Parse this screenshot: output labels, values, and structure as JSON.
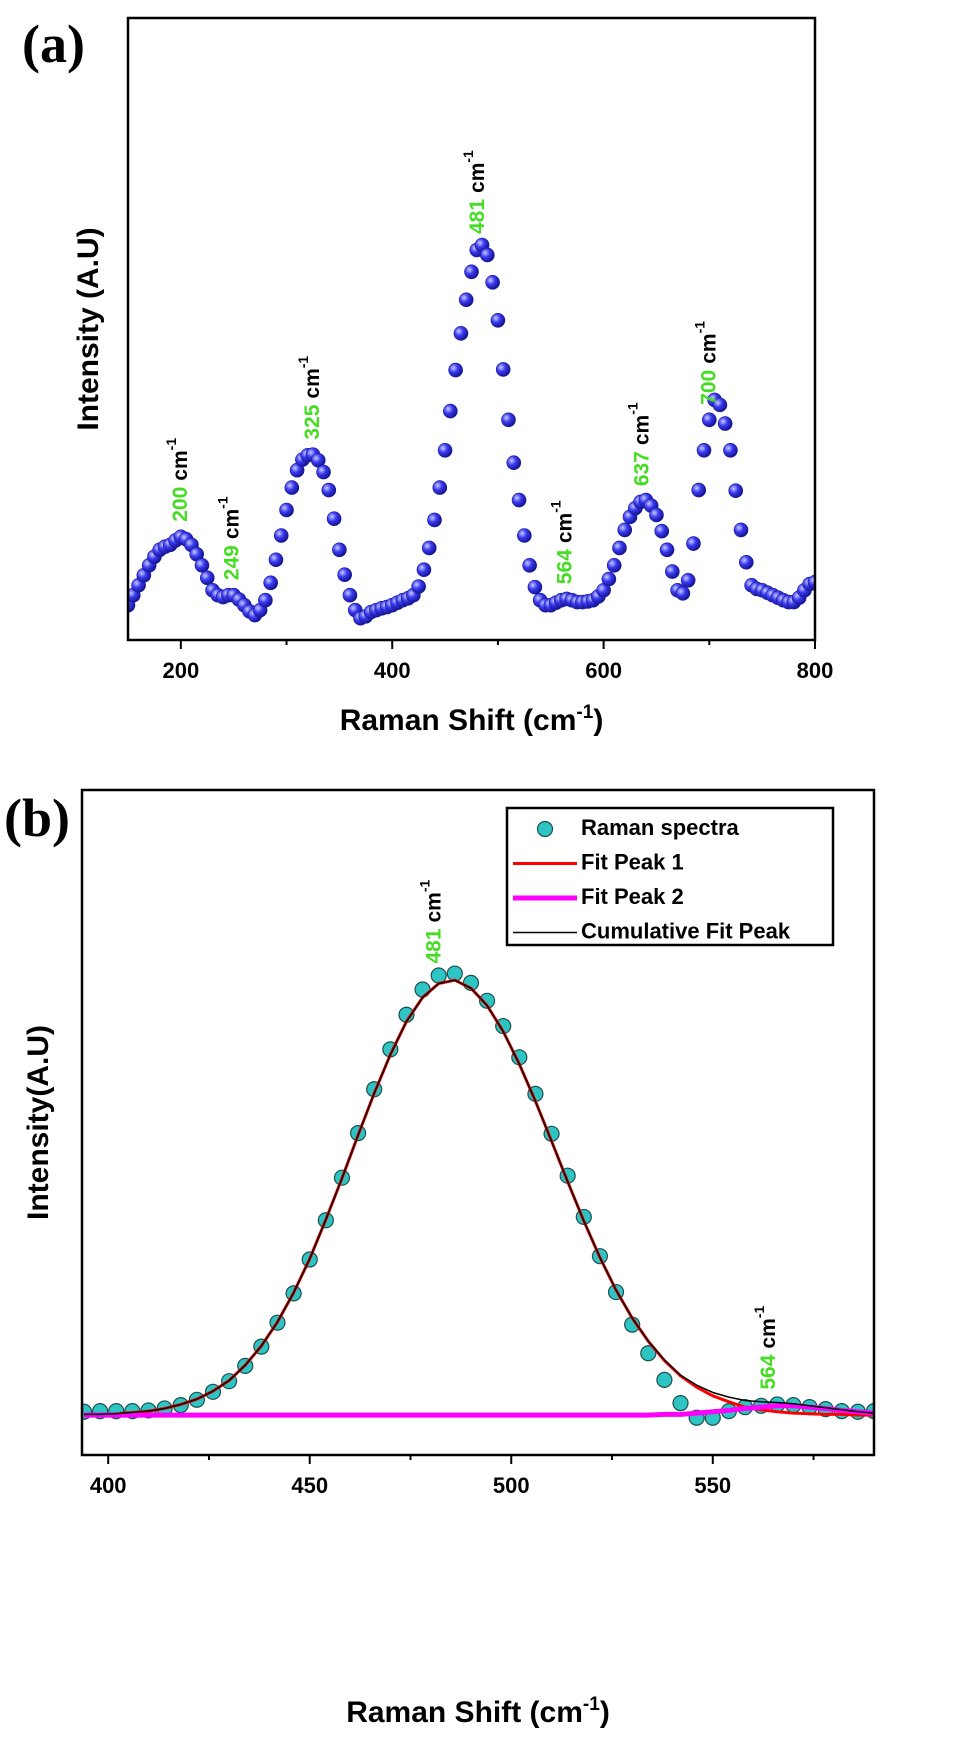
{
  "chart_data": [
    {
      "type": "scatter",
      "panel_label": "(a)",
      "xlabel": "Raman Shift (cm",
      "xlabel_sup": "-1",
      "xlabel_end": ")",
      "ylabel": "Intensity (A.U)",
      "xlim": [
        150,
        800
      ],
      "xticks": [
        200,
        400,
        600,
        800
      ],
      "xminor_ticks": [
        300,
        500,
        700
      ],
      "ylim": [
        0,
        100
      ],
      "x": [
        150,
        155,
        160,
        165,
        170,
        175,
        180,
        185,
        190,
        195,
        200,
        205,
        210,
        215,
        220,
        225,
        230,
        235,
        240,
        245,
        250,
        255,
        260,
        265,
        270,
        275,
        280,
        285,
        290,
        295,
        300,
        305,
        310,
        315,
        320,
        325,
        330,
        335,
        340,
        345,
        350,
        355,
        360,
        365,
        370,
        375,
        380,
        385,
        390,
        395,
        400,
        405,
        410,
        415,
        420,
        425,
        430,
        435,
        440,
        445,
        450,
        455,
        460,
        465,
        470,
        475,
        480,
        485,
        490,
        495,
        500,
        505,
        510,
        515,
        520,
        525,
        530,
        535,
        540,
        545,
        550,
        555,
        560,
        565,
        570,
        575,
        580,
        585,
        590,
        595,
        600,
        605,
        610,
        615,
        620,
        625,
        630,
        635,
        640,
        645,
        650,
        655,
        660,
        665,
        670,
        675,
        680,
        685,
        690,
        695,
        700,
        705,
        710,
        715,
        720,
        725,
        730,
        735,
        740,
        745,
        750,
        755,
        760,
        765,
        770,
        775,
        780,
        785,
        790,
        795,
        800
      ],
      "series": [
        {
          "color": "#2a2ae0",
          "values": [
            5.6,
            7.2,
            8.8,
            10.4,
            12,
            13.4,
            14.5,
            15,
            15.3,
            16,
            16.6,
            16.2,
            15.3,
            13.8,
            12,
            10,
            8,
            7.2,
            6.9,
            7.2,
            7.2,
            6.5,
            5.6,
            4.6,
            4,
            4.8,
            6.4,
            9.2,
            12.9,
            16.8,
            20.9,
            24.5,
            27.3,
            29,
            29.7,
            29.8,
            28.9,
            27,
            24.1,
            19.5,
            14.5,
            10.5,
            7.2,
            4.8,
            3.5,
            3.8,
            4.5,
            4.8,
            5.1,
            5.3,
            5.6,
            6,
            6.4,
            6.7,
            7.2,
            8.6,
            11.3,
            14.8,
            19.3,
            24.5,
            30.5,
            36.8,
            43.4,
            49.3,
            54.7,
            59.2,
            62.7,
            63.5,
            61.9,
            57.5,
            51.4,
            43.5,
            35.4,
            28.5,
            22.5,
            16.8,
            12,
            8.5,
            6.4,
            5.6,
            5.6,
            6,
            6.4,
            6.6,
            6.4,
            6.1,
            6.1,
            6.2,
            6.4,
            7,
            8,
            9.8,
            12,
            14.8,
            17.7,
            19.8,
            21.2,
            22.2,
            22.5,
            21.6,
            20.1,
            17.5,
            14.5,
            11,
            8,
            7.5,
            9.6,
            15.5,
            24.1,
            30.5,
            35.4,
            38.6,
            37.8,
            34.8,
            30.5,
            24,
            17.7,
            12.5,
            8.8,
            8.2,
            8,
            7.6,
            7.2,
            6.8,
            6.4,
            6.1,
            6.1,
            6.8,
            8,
            9,
            9.3
          ]
        }
      ],
      "annotation_color": "#44dd22",
      "annotation_unit": "cm",
      "annotation_sup": "-1",
      "annotations": [
        {
          "x": 200,
          "text": "200"
        },
        {
          "x": 249,
          "text": "249"
        },
        {
          "x": 325,
          "text": "325"
        },
        {
          "x": 481,
          "text": "481"
        },
        {
          "x": 564,
          "text": "564"
        },
        {
          "x": 637,
          "text": "637"
        },
        {
          "x": 700,
          "text": "700"
        }
      ]
    },
    {
      "type": "scatter",
      "panel_label": "(b)",
      "xlabel": "Raman Shift (cm",
      "xlabel_sup": "-1",
      "xlabel_end": ")",
      "ylabel": "Intensity(A.U)",
      "xlim": [
        393.5,
        590
      ],
      "xticks": [
        400,
        450,
        500,
        550
      ],
      "xminor_ticks": [
        425,
        475,
        525,
        575
      ],
      "ylim": [
        0,
        100
      ],
      "legend": "upper right",
      "x": [
        394,
        398,
        402,
        406,
        410,
        414,
        418,
        422,
        426,
        430,
        434,
        438,
        442,
        446,
        450,
        454,
        458,
        462,
        466,
        470,
        474,
        478,
        482,
        486,
        490,
        494,
        498,
        502,
        506,
        510,
        514,
        518,
        522,
        526,
        530,
        534,
        538,
        542,
        546,
        550,
        554,
        558,
        562,
        566,
        570,
        574,
        578,
        582,
        586,
        590
      ],
      "series": [
        {
          "name": "Raman spectra",
          "style": "marker",
          "color": "#2ec4c4",
          "values": [
            6.5,
            6.6,
            6.6,
            6.6,
            6.7,
            7.0,
            7.5,
            8.3,
            9.5,
            11.1,
            13.4,
            16.3,
            19.9,
            24.3,
            29.4,
            35.3,
            41.7,
            48.4,
            55.0,
            61.0,
            66.2,
            70.0,
            72.1,
            72.4,
            71.0,
            68.3,
            64.5,
            59.8,
            54.3,
            48.3,
            42.0,
            35.8,
            29.9,
            24.5,
            19.6,
            15.3,
            11.3,
            7.8,
            5.6,
            5.6,
            6.6,
            7.2,
            7.4,
            7.6,
            7.5,
            7.2,
            6.9,
            6.6,
            6.5,
            6.6
          ]
        },
        {
          "name": "Fit Peak 1",
          "style": "line",
          "line_width": 3,
          "color": "#ff0000",
          "values": [
            6.1,
            6.1,
            6.2,
            6.4,
            6.6,
            7.0,
            7.6,
            8.4,
            9.6,
            11.2,
            13.5,
            16.4,
            20.0,
            24.4,
            29.5,
            35.4,
            41.6,
            48.1,
            54.4,
            60.2,
            65.2,
            68.8,
            70.9,
            71.4,
            70.2,
            67.6,
            63.7,
            58.8,
            53.2,
            47.2,
            41.1,
            35.2,
            29.7,
            24.8,
            20.6,
            17.1,
            14.2,
            11.9,
            10.2,
            8.9,
            8.0,
            7.2,
            6.8,
            6.5,
            6.3,
            6.2,
            6.1,
            6.1,
            6.0,
            6.0
          ]
        },
        {
          "name": "Fit Peak 2",
          "style": "line",
          "line_width": 5,
          "color": "#ff00ff",
          "values": [
            6.0,
            6.0,
            6.0,
            6.0,
            6.0,
            6.0,
            6.0,
            6.0,
            6.0,
            6.0,
            6.0,
            6.0,
            6.0,
            6.0,
            6.0,
            6.0,
            6.0,
            6.0,
            6.0,
            6.0,
            6.0,
            6.0,
            6.0,
            6.0,
            6.0,
            6.0,
            6.0,
            6.0,
            6.0,
            6.0,
            6.0,
            6.0,
            6.0,
            6.0,
            6.0,
            6.0,
            6.1,
            6.1,
            6.3,
            6.5,
            6.7,
            7.0,
            7.2,
            7.4,
            7.4,
            7.2,
            7.0,
            6.7,
            6.5,
            6.3
          ]
        },
        {
          "name": "Cumulative Fit Peak",
          "style": "line",
          "line_width": 1.5,
          "color": "#000000",
          "values": [
            6.1,
            6.1,
            6.2,
            6.4,
            6.6,
            7.0,
            7.6,
            8.4,
            9.6,
            11.2,
            13.5,
            16.4,
            20.0,
            24.4,
            29.5,
            35.4,
            41.6,
            48.1,
            54.4,
            60.2,
            65.2,
            68.8,
            70.9,
            71.4,
            70.2,
            67.6,
            63.7,
            58.8,
            53.2,
            47.2,
            41.1,
            35.2,
            29.7,
            24.8,
            20.6,
            17.1,
            14.3,
            12.0,
            10.5,
            9.4,
            8.7,
            8.2,
            8.0,
            7.9,
            7.7,
            7.4,
            7.1,
            6.8,
            6.5,
            6.3
          ]
        }
      ],
      "annotation_color": "#44dd22",
      "annotation_unit": "cm",
      "annotation_sup": "-1",
      "annotations": [
        {
          "x": 481,
          "text": "481"
        },
        {
          "x": 564,
          "text": "564"
        }
      ]
    }
  ]
}
